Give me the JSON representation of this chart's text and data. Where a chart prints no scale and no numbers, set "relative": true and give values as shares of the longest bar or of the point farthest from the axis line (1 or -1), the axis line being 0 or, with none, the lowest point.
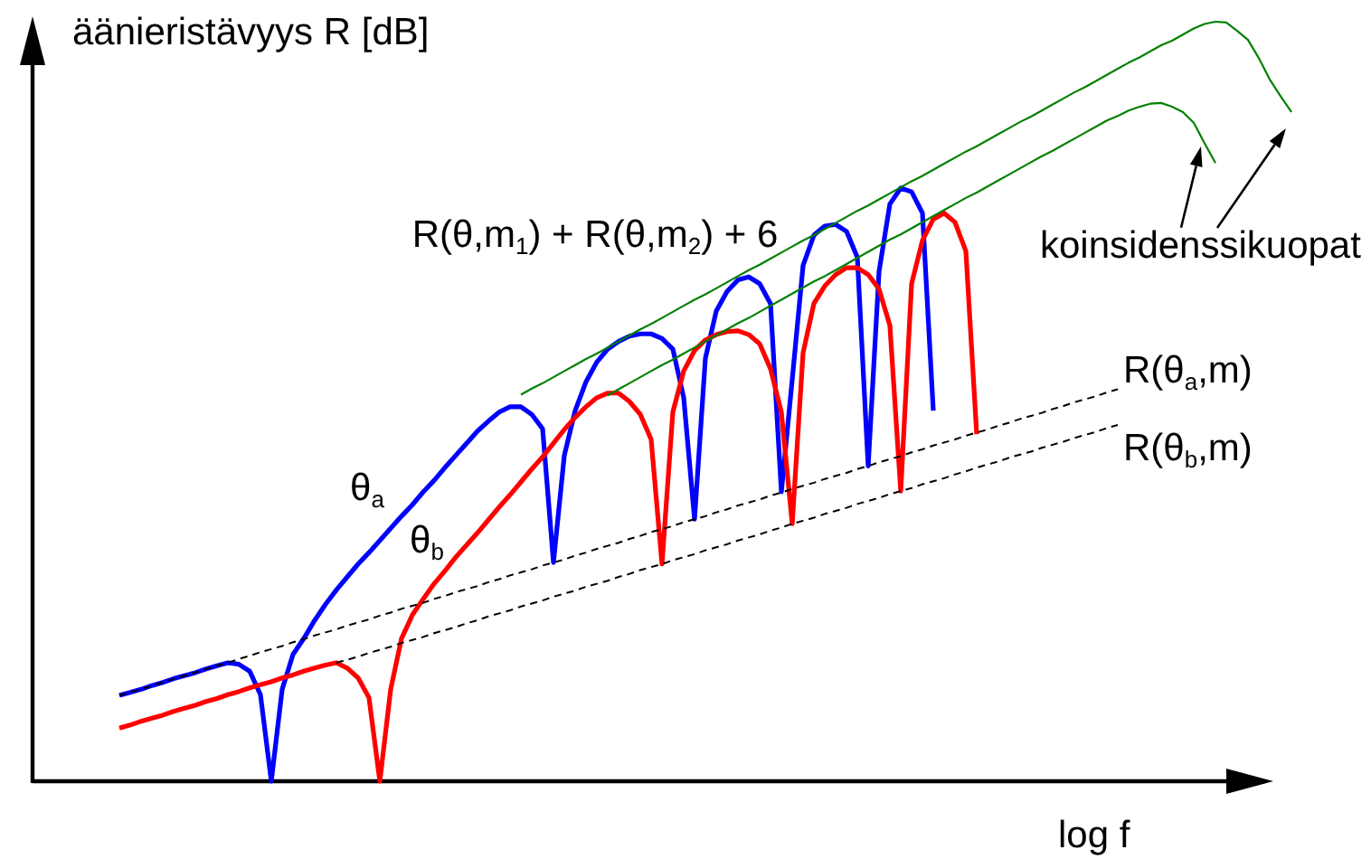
{
  "chart_data": {
    "type": "line",
    "relative": true,
    "xlabel": "log f",
    "ylabel": "äänieristävyys R [dB]",
    "annotations": [
      "koinsidenssikuopat"
    ],
    "tick_labels": false,
    "marker": "none",
    "categories": [
      null,
      null,
      null,
      null,
      null,
      null,
      null,
      null,
      null,
      null,
      null,
      null,
      null,
      null,
      null,
      null,
      null,
      null,
      null,
      null,
      null,
      null,
      null,
      null,
      null,
      null,
      null,
      null,
      null,
      null,
      null,
      null,
      null,
      null,
      null,
      null,
      null,
      null,
      null,
      null,
      null,
      null,
      null,
      null,
      null,
      null,
      null,
      null,
      null,
      null,
      null,
      null,
      null,
      null,
      null,
      null,
      null,
      null,
      null,
      null,
      null,
      null,
      null,
      null,
      null,
      null,
      null,
      null,
      null,
      null,
      null,
      null,
      null,
      null,
      null,
      null,
      null,
      null,
      null,
      null,
      null,
      null,
      null,
      null,
      null,
      null,
      null,
      null,
      null,
      null,
      null,
      null,
      null,
      null,
      null,
      null,
      null,
      null,
      null,
      null,
      null,
      null,
      null,
      null,
      null,
      null,
      null,
      null,
      null,
      null,
      null,
      null,
      null,
      null,
      null,
      null,
      null,
      null
    ],
    "series": [
      {
        "name": "θ$_{a}$",
        "color": "#0000ff",
        "values": [
          null,
          null,
          null,
          null,
          null,
          null,
          null,
          null,
          0.113,
          0.117,
          0.121,
          0.126,
          0.13,
          0.135,
          0.139,
          0.143,
          0.148,
          0.152,
          0.156,
          0.154,
          0.145,
          0.114,
          0,
          0.121,
          0.167,
          0.188,
          0.212,
          0.233,
          0.252,
          0.269,
          0.286,
          0.301,
          0.317,
          0.333,
          0.349,
          0.364,
          0.381,
          0.396,
          0.413,
          0.429,
          0.445,
          0.461,
          0.474,
          0.486,
          0.493,
          0.493,
          0.483,
          0.464,
          0.288,
          0.429,
          0.488,
          0.526,
          0.552,
          0.569,
          0.579,
          0.586,
          0.589,
          0.589,
          0.583,
          0.569,
          0.505,
          0.345,
          0.557,
          0.619,
          0.645,
          0.66,
          0.664,
          0.655,
          0.629,
          0.381,
          0.529,
          0.679,
          0.719,
          0.731,
          0.733,
          0.724,
          0.69,
          0.415,
          0.671,
          0.76,
          0.781,
          0.776,
          0.748,
          0.488,
          null,
          null,
          null,
          null,
          null,
          null,
          null,
          null,
          null,
          null,
          null,
          null,
          null,
          null,
          null,
          null,
          null,
          null,
          null,
          null,
          null,
          null,
          null,
          null,
          null,
          null,
          null,
          null,
          null,
          null,
          null,
          null,
          null,
          null
        ]
      },
      {
        "name": "θ$_{b}$",
        "color": "#ff0000",
        "values": [
          null,
          null,
          null,
          null,
          null,
          null,
          null,
          null,
          0.07,
          0.074,
          0.079,
          0.083,
          0.087,
          0.092,
          0.096,
          0.1,
          0.105,
          0.109,
          0.114,
          0.118,
          0.123,
          0.127,
          0.131,
          0.136,
          0.14,
          0.145,
          0.149,
          0.153,
          0.156,
          0.149,
          0.136,
          0.11,
          0,
          0.121,
          0.188,
          0.219,
          0.24,
          0.26,
          0.277,
          0.295,
          0.311,
          0.327,
          0.344,
          0.361,
          0.377,
          0.394,
          0.411,
          0.427,
          0.445,
          0.463,
          0.479,
          0.493,
          0.505,
          0.511,
          0.511,
          0.5,
          0.483,
          0.45,
          0.286,
          0.486,
          0.54,
          0.567,
          0.581,
          0.588,
          0.592,
          0.593,
          0.588,
          0.576,
          0.543,
          0.486,
          0.339,
          0.564,
          0.629,
          0.652,
          0.667,
          0.676,
          0.676,
          0.667,
          0.648,
          0.6,
          0.382,
          0.655,
          0.712,
          0.74,
          0.748,
          0.736,
          0.698,
          0.457,
          null,
          null,
          null,
          null,
          null,
          null,
          null,
          null,
          null,
          null,
          null,
          null,
          null,
          null,
          null,
          null,
          null,
          null,
          null,
          null,
          null,
          null,
          null,
          null,
          null,
          null,
          null,
          null,
          null,
          null
        ]
      },
      {
        "name": "R(θ$_{a}$,m)",
        "color": "#000000",
        "line_style": "dashed",
        "values": [
          null,
          null,
          null,
          null,
          null,
          null,
          null,
          null,
          0.113,
          0.117,
          0.121,
          0.126,
          0.13,
          0.135,
          0.139,
          0.143,
          0.148,
          0.152,
          0.156,
          0.161,
          0.165,
          0.17,
          0.174,
          0.178,
          0.183,
          0.187,
          0.192,
          0.196,
          0.2,
          0.205,
          0.209,
          0.213,
          0.218,
          0.222,
          0.227,
          0.231,
          0.235,
          0.24,
          0.244,
          0.249,
          0.253,
          0.257,
          0.262,
          0.266,
          0.271,
          0.275,
          0.279,
          0.284,
          0.288,
          0.292,
          0.297,
          0.301,
          0.306,
          0.31,
          0.314,
          0.319,
          0.323,
          0.328,
          0.332,
          0.336,
          0.341,
          0.345,
          0.349,
          0.354,
          0.358,
          0.363,
          0.367,
          0.371,
          0.376,
          0.38,
          0.385,
          0.389,
          0.393,
          0.398,
          0.402,
          0.406,
          0.411,
          0.415,
          0.42,
          0.424,
          0.428,
          0.433,
          0.437,
          0.442,
          0.446,
          0.45,
          0.455,
          0.459,
          0.463,
          0.468,
          0.472,
          0.477,
          0.481,
          0.485,
          0.49,
          0.494,
          0.499,
          0.503,
          0.507,
          0.512,
          0.516,
          null,
          null,
          null,
          null,
          null,
          null,
          null,
          null,
          null,
          null,
          null,
          null,
          null,
          null,
          null,
          null,
          null
        ]
      },
      {
        "name": "R(θ$_{b}$,m)",
        "color": "#000000",
        "line_style": "dashed",
        "values": [
          null,
          null,
          null,
          null,
          null,
          null,
          null,
          null,
          null,
          null,
          null,
          null,
          null,
          null,
          null,
          null,
          null,
          null,
          null,
          null,
          null,
          null,
          null,
          null,
          null,
          null,
          null,
          null,
          0.156,
          0.16,
          0.164,
          0.169,
          0.173,
          0.177,
          0.182,
          0.186,
          0.19,
          0.195,
          0.199,
          0.203,
          0.208,
          0.212,
          0.217,
          0.221,
          0.225,
          0.23,
          0.234,
          0.238,
          0.243,
          0.247,
          0.251,
          0.256,
          0.26,
          0.264,
          0.269,
          0.273,
          0.278,
          0.282,
          0.286,
          0.291,
          0.295,
          0.299,
          0.304,
          0.308,
          0.312,
          0.317,
          0.321,
          0.325,
          0.33,
          0.334,
          0.339,
          0.343,
          0.347,
          0.352,
          0.356,
          0.36,
          0.365,
          0.369,
          0.373,
          0.378,
          0.382,
          0.386,
          0.391,
          0.395,
          0.399,
          0.404,
          0.408,
          0.413,
          0.417,
          0.421,
          0.426,
          0.43,
          0.434,
          0.439,
          0.443,
          0.447,
          0.452,
          0.456,
          0.46,
          0.465,
          0.469,
          null,
          null,
          null,
          null,
          null,
          null,
          null,
          null,
          null,
          null,
          null,
          null,
          null,
          null,
          null,
          null,
          null
        ]
      },
      {
        "name": "R(θ,m$_{1}$) + R(θ,m$_{2}$) + 6",
        "color": "#008000",
        "values": [
          null,
          null,
          null,
          null,
          null,
          null,
          null,
          null,
          null,
          null,
          null,
          null,
          null,
          null,
          null,
          null,
          null,
          null,
          null,
          null,
          null,
          null,
          null,
          null,
          null,
          null,
          null,
          null,
          null,
          null,
          null,
          null,
          null,
          null,
          null,
          null,
          null,
          null,
          null,
          null,
          null,
          null,
          null,
          null,
          null,
          0.509,
          0.517,
          0.524,
          0.532,
          0.54,
          0.548,
          0.556,
          0.563,
          0.571,
          0.579,
          0.587,
          0.595,
          0.602,
          0.61,
          0.618,
          0.626,
          0.634,
          0.641,
          0.649,
          0.657,
          0.665,
          0.673,
          0.68,
          0.688,
          0.696,
          0.704,
          0.712,
          0.719,
          0.727,
          0.735,
          0.743,
          0.751,
          0.758,
          0.766,
          0.774,
          0.782,
          0.79,
          0.797,
          0.805,
          0.813,
          0.821,
          0.829,
          0.836,
          0.844,
          0.852,
          0.86,
          0.868,
          0.875,
          0.883,
          0.891,
          0.899,
          0.907,
          0.914,
          0.922,
          0.93,
          0.938,
          0.946,
          0.953,
          0.961,
          0.969,
          0.975,
          0.983,
          0.991,
          0.997,
          1,
          0.999,
          0.988,
          0.976,
          0.952,
          0.924,
          0.902,
          0.881,
          null
        ]
      },
      {
        "color": "#008000",
        "values": [
          null,
          null,
          null,
          null,
          null,
          null,
          null,
          null,
          null,
          null,
          null,
          null,
          null,
          null,
          null,
          null,
          null,
          null,
          null,
          null,
          null,
          null,
          null,
          null,
          null,
          null,
          null,
          null,
          null,
          null,
          null,
          null,
          null,
          null,
          null,
          null,
          null,
          null,
          null,
          null,
          null,
          null,
          null,
          null,
          null,
          null,
          null,
          null,
          null,
          null,
          null,
          null,
          null,
          0.508,
          0.516,
          0.524,
          0.532,
          0.54,
          0.548,
          0.555,
          0.563,
          0.571,
          0.579,
          0.587,
          0.595,
          0.603,
          0.61,
          0.618,
          0.626,
          0.634,
          0.642,
          0.65,
          0.658,
          0.665,
          0.673,
          0.681,
          0.689,
          0.697,
          0.705,
          0.713,
          0.72,
          0.728,
          0.736,
          0.744,
          0.752,
          0.76,
          0.768,
          0.775,
          0.783,
          0.791,
          0.799,
          0.807,
          0.815,
          0.823,
          0.83,
          0.838,
          0.846,
          0.854,
          0.862,
          0.87,
          0.876,
          0.883,
          0.888,
          0.892,
          0.893,
          0.888,
          0.881,
          0.867,
          0.84,
          0.814,
          null,
          null,
          null,
          null,
          null,
          null,
          null,
          null
        ]
      }
    ]
  }
}
